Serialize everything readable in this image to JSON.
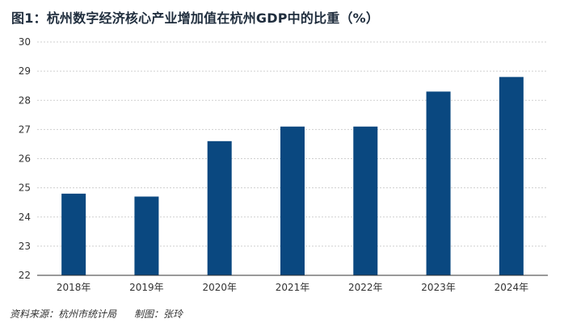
{
  "title": "图1：杭州数字经济核心产业增加值在杭州GDP中的比重（%）",
  "footer": {
    "source": "资料来源：杭州市统计局",
    "credit": "制图：张玲"
  },
  "colors": {
    "bar": "#0a4880",
    "grid": "#cfcfcf",
    "axis": "#333333"
  },
  "chart_data": {
    "type": "bar",
    "categories": [
      "2018年",
      "2019年",
      "2020年",
      "2021年",
      "2022年",
      "2023年",
      "2024年"
    ],
    "values": [
      24.8,
      24.7,
      26.6,
      27.1,
      27.1,
      28.3,
      28.8
    ],
    "ylim": [
      22,
      30
    ],
    "yticks": [
      22,
      23,
      24,
      25,
      26,
      27,
      28,
      29,
      30
    ],
    "grid": true,
    "legend": "none"
  }
}
